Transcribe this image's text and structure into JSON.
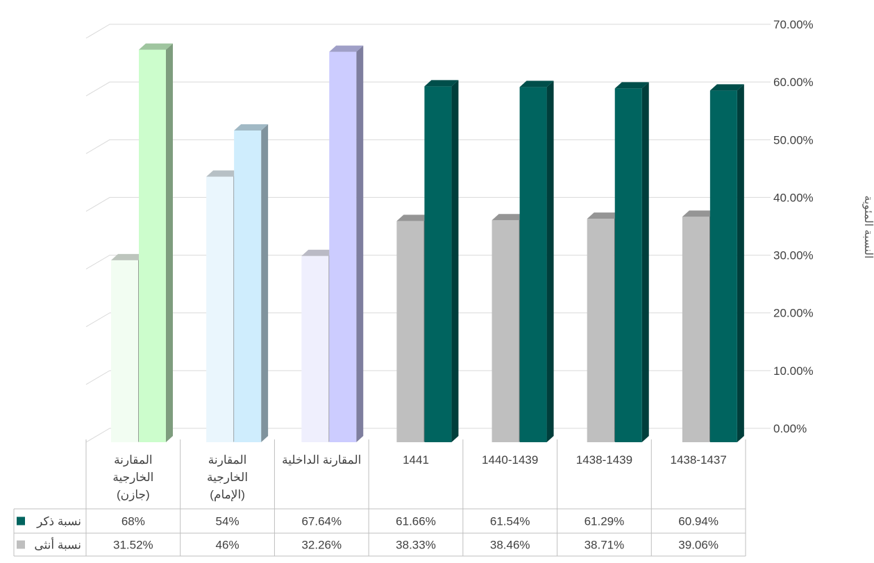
{
  "chart_data": {
    "type": "bar",
    "ylabel": "النسبة المئوية",
    "ylim": [
      0,
      70
    ],
    "yticks": [
      "0.00%",
      "10.00%",
      "20.00%",
      "30.00%",
      "40.00%",
      "50.00%",
      "60.00%",
      "70.00%"
    ],
    "categories": [
      [
        "المقارنة",
        "الخارجية",
        "(جازن)"
      ],
      [
        "المقارنة",
        "الخارجية",
        "(الإمام)"
      ],
      [
        "المقارنة الداخلية"
      ],
      [
        "1441"
      ],
      [
        "1440-1439"
      ],
      [
        "1438-1439"
      ],
      [
        "1438-1437"
      ]
    ],
    "series": [
      {
        "name": "نسبة ذكر",
        "legend_color": "#00645f",
        "values": [
          68,
          54,
          67.64,
          61.66,
          61.54,
          61.29,
          60.94
        ],
        "labels": [
          "68%",
          "54%",
          "67.64%",
          "61.66%",
          "61.54%",
          "61.29%",
          "60.94%"
        ],
        "colors": [
          "#ccfdcc",
          "#cfedfd",
          "#ccccff",
          "#00645f",
          "#00645f",
          "#00645f",
          "#00645f"
        ]
      },
      {
        "name": "نسبة أنثى",
        "legend_color": "#bfbfbf",
        "values": [
          31.52,
          46,
          32.26,
          38.33,
          38.46,
          38.71,
          39.06
        ],
        "labels": [
          "31.52%",
          "46%",
          "32.26%",
          "38.33%",
          "38.46%",
          "38.71%",
          "39.06%"
        ],
        "colors": [
          "#f2fdf2",
          "#eaf6fd",
          "#efeffd",
          "#bfbfbf",
          "#bfbfbf",
          "#bfbfbf",
          "#bfbfbf"
        ]
      }
    ],
    "grid": true,
    "legend": "table-left"
  }
}
